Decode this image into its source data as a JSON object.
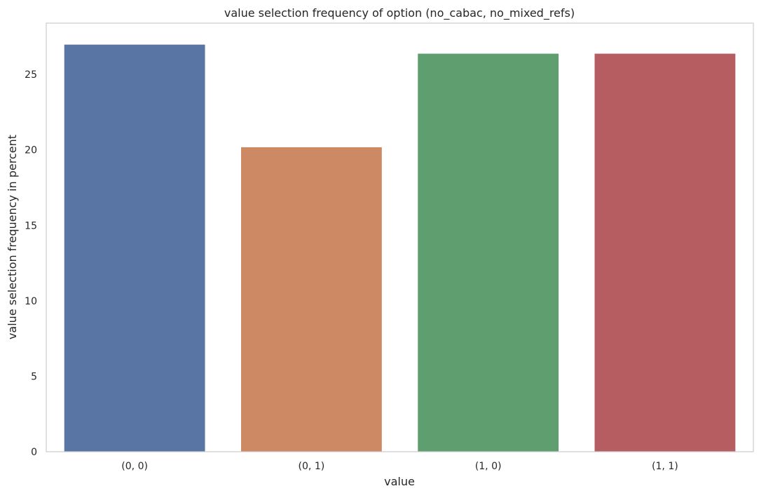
{
  "chart_data": {
    "type": "bar",
    "title": "value selection frequency of option (no_cabac, no_mixed_refs)",
    "xlabel": "value",
    "ylabel": "value selection frequency in percent",
    "categories": [
      "(0, 0)",
      "(0, 1)",
      "(1, 0)",
      "(1, 1)"
    ],
    "values": [
      27.0,
      20.2,
      26.4,
      26.4
    ],
    "ylim": [
      0,
      28.4
    ],
    "yticks": [
      0,
      5,
      10,
      15,
      20,
      25
    ],
    "grid": false,
    "bar_colors": [
      "#5875a4",
      "#cc8963",
      "#5f9e6e",
      "#b55d60"
    ]
  }
}
